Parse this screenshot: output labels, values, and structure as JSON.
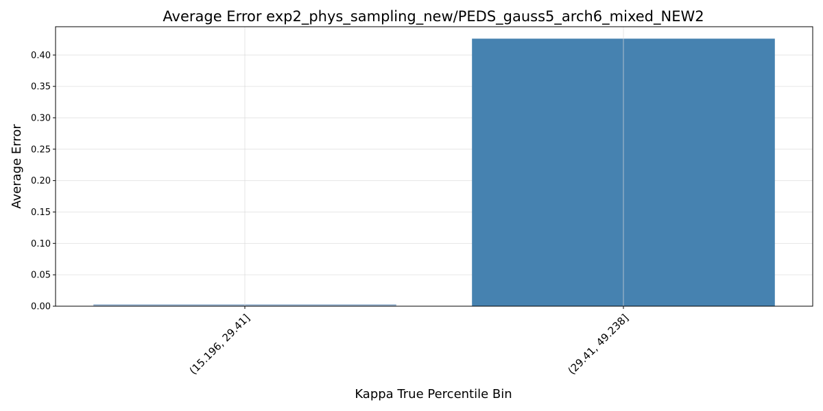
{
  "chart_data": {
    "type": "bar",
    "title": "Average Error exp2_phys_sampling_new/PEDS_gauss5_arch6_mixed_NEW2",
    "xlabel": "Kappa True Percentile Bin",
    "ylabel": "Average Error",
    "categories": [
      "(15.196, 29.41]",
      "(29.41, 49.238]"
    ],
    "values": [
      0.003,
      0.426
    ],
    "bar_colors": [
      "#9bb5d0",
      "#4682b0"
    ],
    "ylim": [
      0,
      0.445
    ],
    "yticks": [
      0.0,
      0.05,
      0.1,
      0.15,
      0.2,
      0.25,
      0.3,
      0.35,
      0.4
    ],
    "ytick_labels": [
      "0.00",
      "0.05",
      "0.10",
      "0.15",
      "0.20",
      "0.25",
      "0.30",
      "0.35",
      "0.40"
    ],
    "grid": true,
    "xtick_rotation": 45
  }
}
